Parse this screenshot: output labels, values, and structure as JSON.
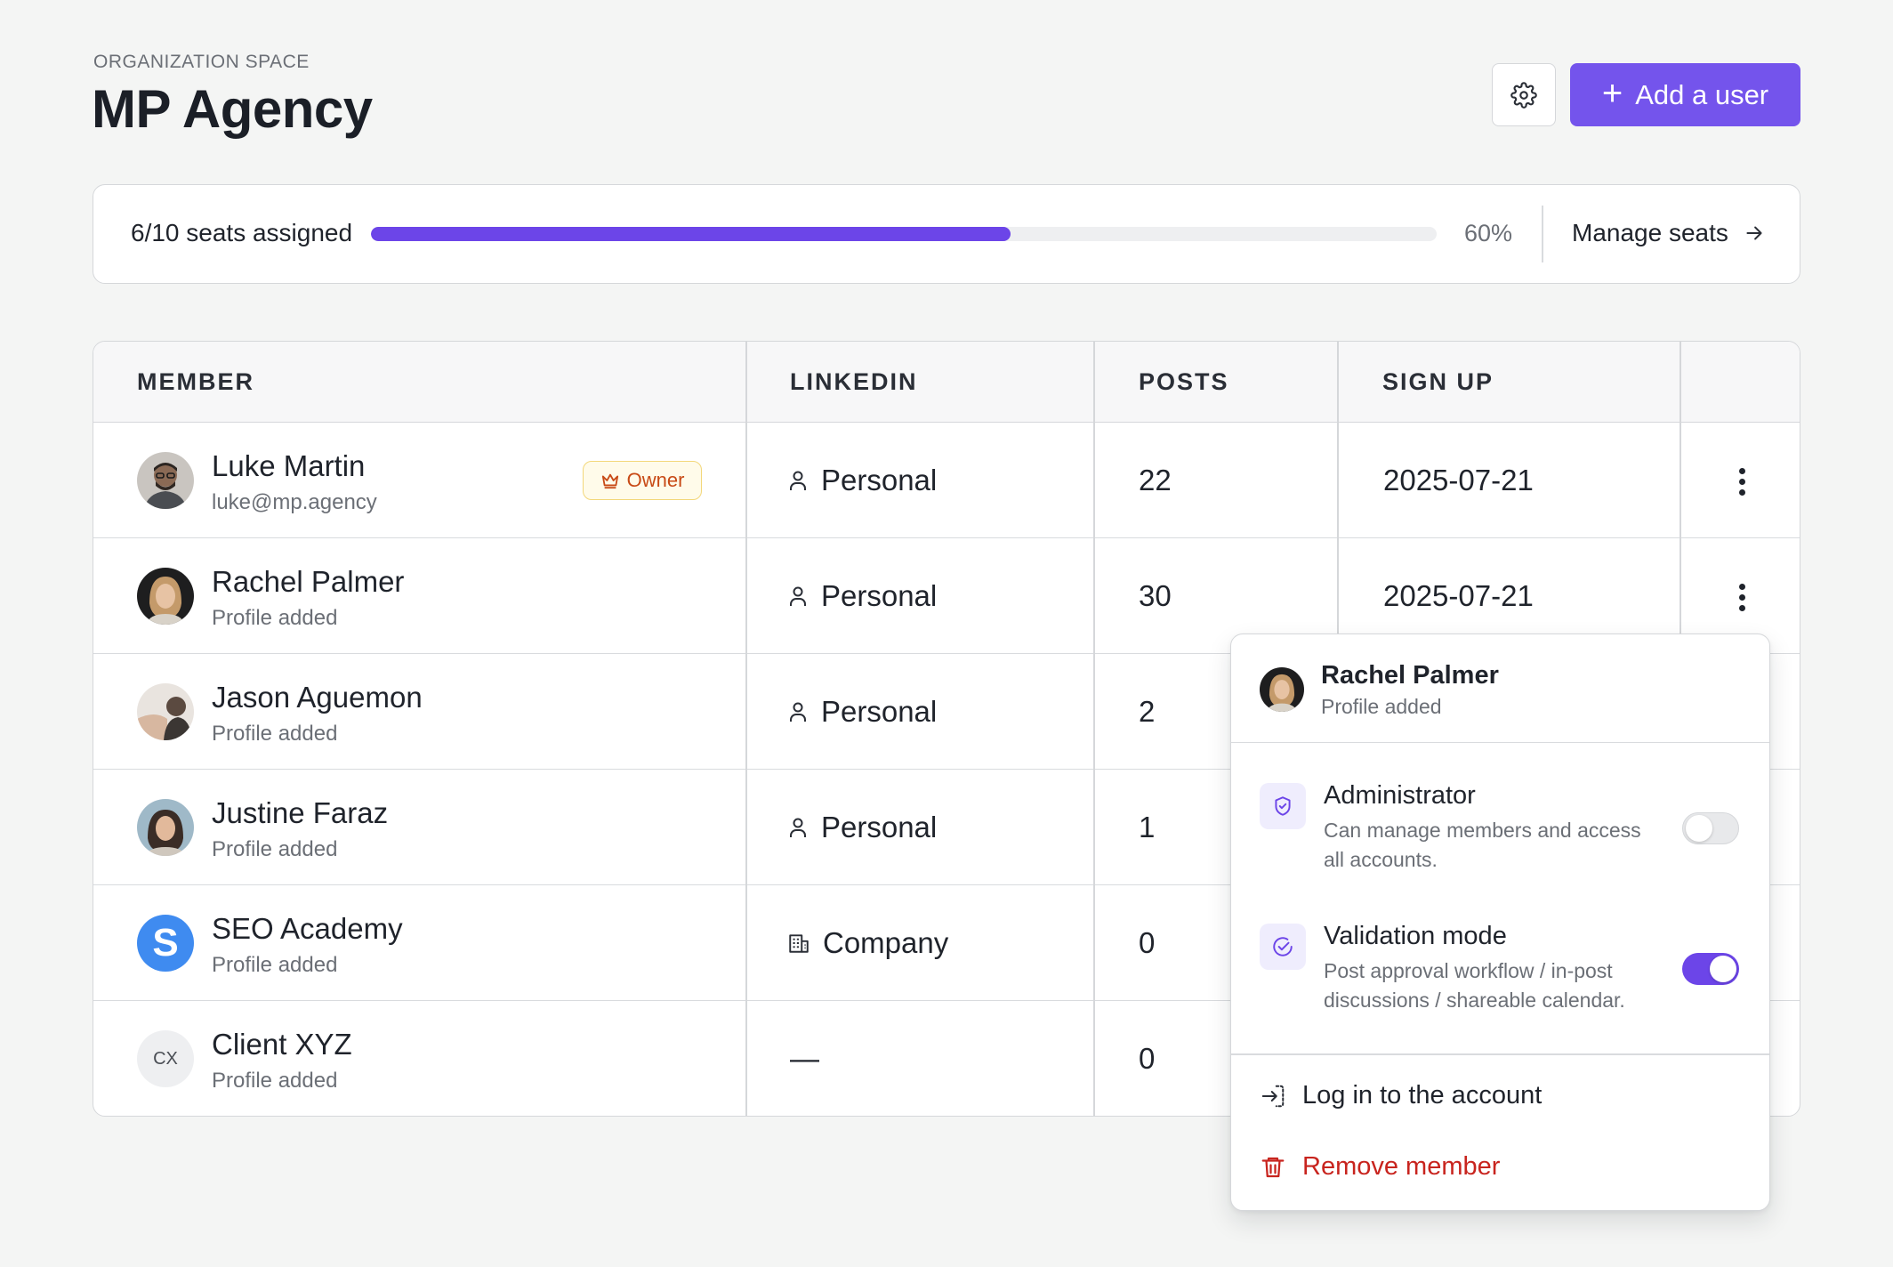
{
  "header": {
    "eyebrow": "ORGANIZATION SPACE",
    "title": "MP Agency",
    "add_user_label": "Add a user"
  },
  "seats": {
    "label": "6/10 seats assigned",
    "progress": 0.6,
    "percent_text": "60%",
    "manage_label": "Manage seats"
  },
  "table": {
    "headers": {
      "member": "MEMBER",
      "linkedin": "LINKEDIN",
      "posts": "POSTS",
      "signup": "SIGN UP"
    },
    "rows": [
      {
        "name": "Luke Martin",
        "sub": "luke@mp.agency",
        "badge": "Owner",
        "linkedin": "Personal",
        "linkedin_icon": "person-icon",
        "posts": "22",
        "signup": "2025-07-21"
      },
      {
        "name": "Rachel Palmer",
        "sub": "Profile added",
        "linkedin": "Personal",
        "linkedin_icon": "person-icon",
        "posts": "30",
        "signup": "2025-07-21"
      },
      {
        "name": "Jason Aguemon",
        "sub": "Profile added",
        "linkedin": "Personal",
        "linkedin_icon": "person-icon",
        "posts": "2"
      },
      {
        "name": "Justine Faraz",
        "sub": "Profile added",
        "linkedin": "Personal",
        "linkedin_icon": "person-icon",
        "posts": "1"
      },
      {
        "name": "SEO Academy",
        "sub": "Profile added",
        "avatar_letter": "S",
        "linkedin": "Company",
        "linkedin_icon": "building-icon",
        "posts": "0"
      },
      {
        "name": "Client XYZ",
        "sub": "Profile added",
        "avatar_initials": "CX",
        "linkedin": "—",
        "posts": "0"
      }
    ]
  },
  "popover": {
    "name": "Rachel Palmer",
    "sub": "Profile added",
    "options": [
      {
        "title": "Administrator",
        "desc": "Can manage members and access all accounts.",
        "enabled": false,
        "icon": "shield-icon"
      },
      {
        "title": "Validation mode",
        "desc": "Post approval workflow / in-post discussions / shareable calendar.",
        "enabled": true,
        "icon": "check-circle-icon"
      }
    ],
    "login_label": "Log in to the account",
    "remove_label": "Remove member"
  },
  "colors": {
    "accent": "#7454ec",
    "danger": "#c8241e",
    "owner_badge": "#c84a16"
  }
}
